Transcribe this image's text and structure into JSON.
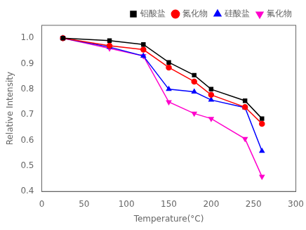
{
  "chart_data": {
    "type": "line",
    "xlabel": "Temperature(°C)",
    "ylabel": "Relative Intensity",
    "x": [
      25,
      80,
      120,
      150,
      180,
      200,
      240,
      260
    ],
    "series": [
      {
        "name": "铝酸盐",
        "color": "#000000",
        "marker": "square",
        "values": [
          1.0,
          0.99,
          0.975,
          0.905,
          0.855,
          0.8,
          0.755,
          0.685
        ]
      },
      {
        "name": "氮化物",
        "color": "#ff0000",
        "marker": "circle",
        "values": [
          1.0,
          0.97,
          0.955,
          0.885,
          0.83,
          0.778,
          0.73,
          0.665
        ]
      },
      {
        "name": "硅酸盐",
        "color": "#0000ff",
        "marker": "triangle-up",
        "values": [
          1.0,
          0.965,
          0.93,
          0.8,
          0.79,
          0.758,
          0.728,
          0.558
        ]
      },
      {
        "name": "氟化物",
        "color": "#ff00cc",
        "marker": "triangle-down",
        "values": [
          1.0,
          0.96,
          0.93,
          0.75,
          0.705,
          0.685,
          0.606,
          0.458
        ]
      }
    ],
    "xlim": [
      0,
      300
    ],
    "xticks": [
      0,
      50,
      100,
      150,
      200,
      250,
      300
    ],
    "ylim": [
      0.4,
      1.05
    ],
    "yticks": [
      0.4,
      0.5,
      0.6,
      0.7,
      0.8,
      0.9,
      {
        "value": 1.0,
        "label": "1.0"
      }
    ],
    "grid": false,
    "legend": "upper right"
  }
}
